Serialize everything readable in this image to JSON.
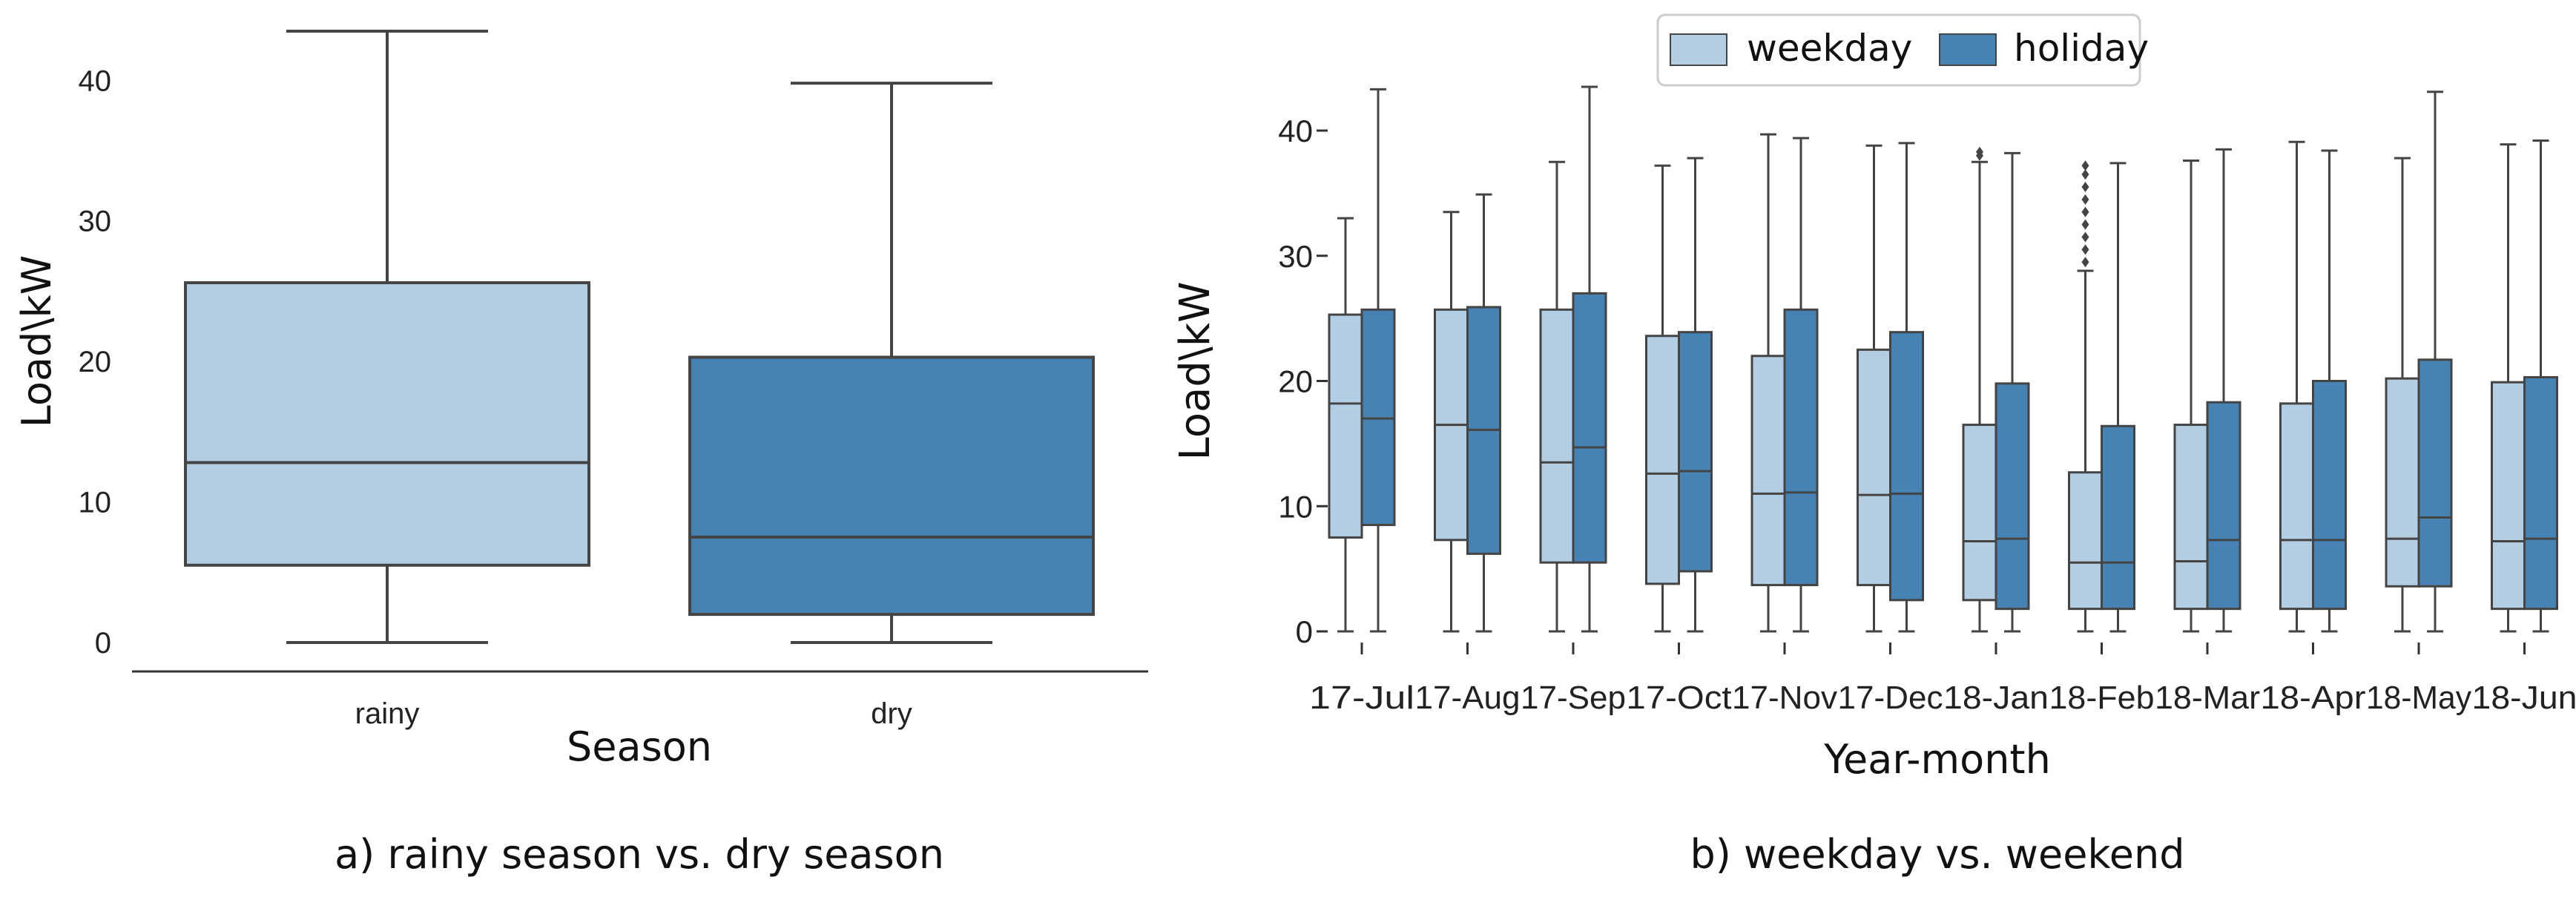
{
  "colors": {
    "light": "#b3cde3",
    "dark": "#4682b4",
    "line": "#444444"
  },
  "chart_data": [
    {
      "type": "box",
      "xlabel": "Season",
      "ylabel": "Load\\kW",
      "ylim": [
        -2,
        44
      ],
      "yticks": [
        0,
        10,
        20,
        30,
        40
      ],
      "caption": "a) rainy season vs. dry season",
      "categories": [
        "rainy",
        "dry"
      ],
      "boxes": [
        {
          "category": "rainy",
          "color": "light",
          "whisker_low": 0,
          "q1": 5.5,
          "median": 12.8,
          "q3": 25.6,
          "whisker_high": 43.5
        },
        {
          "category": "dry",
          "color": "dark",
          "whisker_low": 0,
          "q1": 2.0,
          "median": 7.5,
          "q3": 20.3,
          "whisker_high": 39.8
        }
      ]
    },
    {
      "type": "box",
      "xlabel": "Year-month",
      "ylabel": "Load\\kW",
      "ylim": [
        -1,
        44
      ],
      "yticks": [
        0,
        10,
        20,
        30,
        40
      ],
      "caption": "b) weekday vs. weekend",
      "legend": [
        {
          "label": "weekday",
          "color": "light"
        },
        {
          "label": "holiday",
          "color": "dark"
        }
      ],
      "categories": [
        "17-Jul",
        "17-Aug",
        "17-Sep",
        "17-Oct",
        "17-Nov",
        "17-Dec",
        "18-Jan",
        "18-Feb",
        "18-Mar",
        "18-Apr",
        "18-May",
        "18-Jun"
      ],
      "series": [
        {
          "name": "weekday",
          "color": "light",
          "boxes": [
            {
              "whisker_low": 0,
              "q1": 7.5,
              "median": 18.2,
              "q3": 25.3,
              "whisker_high": 33.0
            },
            {
              "whisker_low": 0,
              "q1": 7.3,
              "median": 16.5,
              "q3": 25.7,
              "whisker_high": 33.5
            },
            {
              "whisker_low": 0,
              "q1": 5.5,
              "median": 13.5,
              "q3": 25.7,
              "whisker_high": 37.5
            },
            {
              "whisker_low": 0,
              "q1": 3.8,
              "median": 12.6,
              "q3": 23.6,
              "whisker_high": 37.2
            },
            {
              "whisker_low": 0,
              "q1": 3.7,
              "median": 11.0,
              "q3": 22.0,
              "whisker_high": 39.7
            },
            {
              "whisker_low": 0,
              "q1": 3.7,
              "median": 10.9,
              "q3": 22.5,
              "whisker_high": 38.8
            },
            {
              "whisker_low": 0,
              "q1": 2.5,
              "median": 7.2,
              "q3": 16.5,
              "whisker_high": 37.5,
              "outliers": [
                38.0,
                38.3
              ]
            },
            {
              "whisker_low": 0,
              "q1": 1.8,
              "median": 5.5,
              "q3": 12.7,
              "whisker_high": 28.8,
              "outliers": [
                29.5,
                30.5,
                31.5,
                32.5,
                33.5,
                34.5,
                35.5,
                36.5,
                37.2
              ]
            },
            {
              "whisker_low": 0,
              "q1": 1.8,
              "median": 5.6,
              "q3": 16.5,
              "whisker_high": 37.6
            },
            {
              "whisker_low": 0,
              "q1": 1.8,
              "median": 7.3,
              "q3": 18.2,
              "whisker_high": 39.1
            },
            {
              "whisker_low": 0,
              "q1": 3.6,
              "median": 7.4,
              "q3": 20.2,
              "whisker_high": 37.8
            },
            {
              "whisker_low": 0,
              "q1": 1.8,
              "median": 7.2,
              "q3": 19.9,
              "whisker_high": 38.9
            }
          ]
        },
        {
          "name": "holiday",
          "color": "dark",
          "boxes": [
            {
              "whisker_low": 0,
              "q1": 8.5,
              "median": 17.0,
              "q3": 25.7,
              "whisker_high": 43.3
            },
            {
              "whisker_low": 0,
              "q1": 6.2,
              "median": 16.1,
              "q3": 25.9,
              "whisker_high": 34.9
            },
            {
              "whisker_low": 0,
              "q1": 5.5,
              "median": 14.7,
              "q3": 27.0,
              "whisker_high": 43.5
            },
            {
              "whisker_low": 0,
              "q1": 4.8,
              "median": 12.8,
              "q3": 23.9,
              "whisker_high": 37.8
            },
            {
              "whisker_low": 0,
              "q1": 3.7,
              "median": 11.1,
              "q3": 25.7,
              "whisker_high": 39.4
            },
            {
              "whisker_low": 0,
              "q1": 2.5,
              "median": 11.0,
              "q3": 23.9,
              "whisker_high": 39.0
            },
            {
              "whisker_low": 0,
              "q1": 1.8,
              "median": 7.4,
              "q3": 19.8,
              "whisker_high": 38.2
            },
            {
              "whisker_low": 0,
              "q1": 1.8,
              "median": 5.5,
              "q3": 16.4,
              "whisker_high": 37.4
            },
            {
              "whisker_low": 0,
              "q1": 1.8,
              "median": 7.3,
              "q3": 18.3,
              "whisker_high": 38.5
            },
            {
              "whisker_low": 0,
              "q1": 1.8,
              "median": 7.3,
              "q3": 20.0,
              "whisker_high": 38.4
            },
            {
              "whisker_low": 0,
              "q1": 3.6,
              "median": 9.1,
              "q3": 21.7,
              "whisker_high": 43.1
            },
            {
              "whisker_low": 0,
              "q1": 1.8,
              "median": 7.4,
              "q3": 20.3,
              "whisker_high": 39.2
            }
          ]
        }
      ]
    }
  ]
}
